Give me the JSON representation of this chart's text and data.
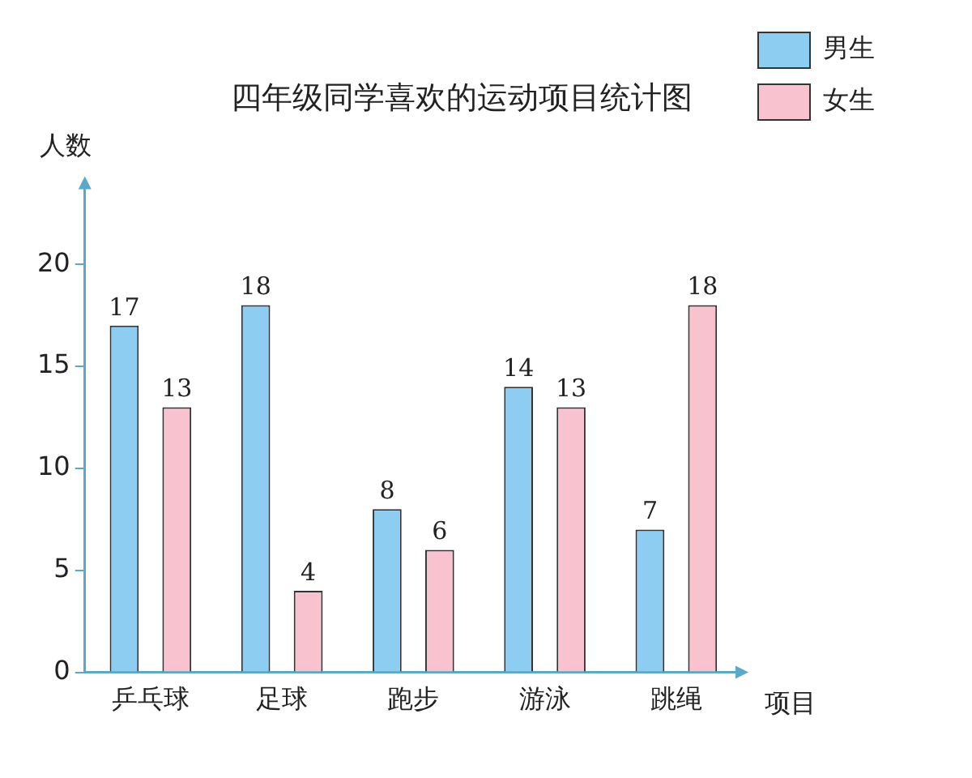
{
  "chart_data": {
    "type": "bar",
    "title": "四年级同学喜欢的运动项目统计图",
    "xlabel": "项目",
    "ylabel": "人数",
    "categories": [
      "乒乓球",
      "足球",
      "跑步",
      "游泳",
      "跳绳"
    ],
    "series": [
      {
        "name": "男生",
        "color": "#8ecdf2",
        "values": [
          17,
          18,
          8,
          14,
          7
        ]
      },
      {
        "name": "女生",
        "color": "#f8c3cf",
        "values": [
          13,
          4,
          6,
          13,
          18
        ]
      }
    ],
    "ylim": [
      0,
      24
    ],
    "yticks": [
      0,
      5,
      10,
      15,
      20
    ],
    "grid": false,
    "legend": "top right",
    "data_labels": true
  }
}
